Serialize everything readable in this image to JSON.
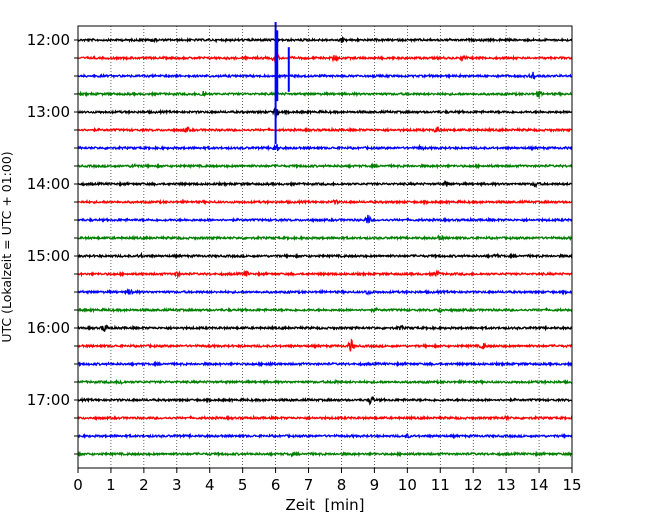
{
  "chart_data": {
    "type": "line",
    "title": "",
    "xlabel": "Zeit  [min]",
    "ylabel": "UTC (Lokalzeit = UTC + 01:00)",
    "xlim": [
      0,
      15
    ],
    "x_ticks": [
      "0",
      "1",
      "2",
      "3",
      "4",
      "5",
      "6",
      "7",
      "8",
      "9",
      "10",
      "11",
      "12",
      "13",
      "14",
      "15"
    ],
    "y_tick_labels": [
      "12:00",
      "13:00",
      "14:00",
      "15:00",
      "16:00",
      "17:00"
    ],
    "grid": "vertical dotted lines at each minute",
    "colors": [
      "#000000",
      "#ff0000",
      "#0000ff",
      "#008000"
    ],
    "trace_minutes": 15,
    "series": [
      {
        "start": "12:00",
        "color": "#000000",
        "events": [
          {
            "t": 2.3,
            "amp": 0.25
          },
          {
            "t": 8.0,
            "amp": 0.25
          }
        ]
      },
      {
        "start": "12:15",
        "color": "#ff0000",
        "events": [
          {
            "t": 6.0,
            "amp": 0.7
          },
          {
            "t": 7.8,
            "amp": 0.4
          },
          {
            "t": 11.7,
            "amp": 0.25
          }
        ]
      },
      {
        "start": "12:30",
        "color": "#0000ff",
        "events": [
          {
            "t": 6.05,
            "amp": 1.9
          },
          {
            "t": 6.4,
            "amp": 1.2
          },
          {
            "t": 13.8,
            "amp": 0.5
          }
        ]
      },
      {
        "start": "12:45",
        "color": "#008000",
        "events": [
          {
            "t": 3.8,
            "amp": 0.45
          },
          {
            "t": 14.0,
            "amp": 0.3
          }
        ]
      },
      {
        "start": "13:00",
        "color": "#000000",
        "events": [
          {
            "t": 6.0,
            "amp": 0.8
          }
        ]
      },
      {
        "start": "13:15",
        "color": "#ff0000",
        "events": [
          {
            "t": 3.3,
            "amp": 0.3
          },
          {
            "t": 10.9,
            "amp": 0.35
          }
        ]
      },
      {
        "start": "13:30",
        "color": "#0000ff",
        "events": [
          {
            "t": 6.0,
            "amp": 0.6
          },
          {
            "t": 10.4,
            "amp": 0.25
          }
        ]
      },
      {
        "start": "13:45",
        "color": "#008000",
        "events": [
          {
            "t": 1.7,
            "amp": 0.25
          }
        ]
      },
      {
        "start": "14:00",
        "color": "#000000",
        "events": [
          {
            "t": 11.2,
            "amp": 0.3
          },
          {
            "t": 13.9,
            "amp": 0.35
          }
        ]
      },
      {
        "start": "14:15",
        "color": "#ff0000",
        "events": [
          {
            "t": 7.8,
            "amp": 0.2
          }
        ]
      },
      {
        "start": "14:30",
        "color": "#0000ff",
        "events": [
          {
            "t": 8.8,
            "amp": 0.6
          }
        ]
      },
      {
        "start": "14:45",
        "color": "#008000",
        "events": [
          {
            "t": 11.0,
            "amp": 0.25
          }
        ]
      },
      {
        "start": "15:00",
        "color": "#000000",
        "events": [
          {
            "t": 1.9,
            "amp": 0.2
          },
          {
            "t": 12.7,
            "amp": 0.2
          }
        ]
      },
      {
        "start": "15:15",
        "color": "#ff0000",
        "events": [
          {
            "t": 3.0,
            "amp": 0.3
          },
          {
            "t": 5.1,
            "amp": 0.3
          },
          {
            "t": 10.9,
            "amp": 0.3
          }
        ]
      },
      {
        "start": "15:30",
        "color": "#0000ff",
        "events": [
          {
            "t": 1.6,
            "amp": 0.45
          },
          {
            "t": 8.8,
            "amp": 0.3
          }
        ]
      },
      {
        "start": "15:45",
        "color": "#008000",
        "events": [
          {
            "t": 9.0,
            "amp": 0.2
          },
          {
            "t": 11.0,
            "amp": 0.2
          }
        ]
      },
      {
        "start": "16:00",
        "color": "#000000",
        "events": [
          {
            "t": 0.8,
            "amp": 0.45
          },
          {
            "t": 9.8,
            "amp": 0.2
          }
        ]
      },
      {
        "start": "16:15",
        "color": "#ff0000",
        "events": [
          {
            "t": 8.3,
            "amp": 0.8
          },
          {
            "t": 12.3,
            "amp": 0.35
          }
        ]
      },
      {
        "start": "16:30",
        "color": "#0000ff",
        "events": [
          {
            "t": 5.8,
            "amp": 0.2
          }
        ]
      },
      {
        "start": "16:45",
        "color": "#008000",
        "events": [
          {
            "t": 1.3,
            "amp": 0.25
          },
          {
            "t": 7.8,
            "amp": 0.2
          }
        ]
      },
      {
        "start": "17:00",
        "color": "#000000",
        "events": [
          {
            "t": 8.9,
            "amp": 0.6
          }
        ]
      },
      {
        "start": "17:15",
        "color": "#ff0000",
        "events": [
          {
            "t": 13.0,
            "amp": 0.15
          }
        ]
      },
      {
        "start": "17:30",
        "color": "#0000ff",
        "events": [
          {
            "t": 10.0,
            "amp": 0.2
          }
        ]
      },
      {
        "start": "17:45",
        "color": "#008000",
        "events": [
          {
            "t": 6.5,
            "amp": 0.15
          }
        ]
      }
    ]
  }
}
